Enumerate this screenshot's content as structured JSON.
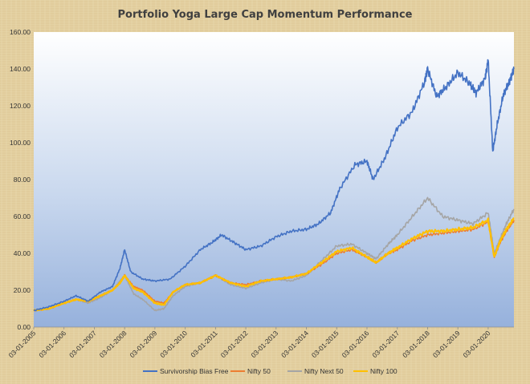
{
  "chart_data": {
    "type": "line",
    "title": "Portfolio Yoga Large Cap Momentum Performance",
    "xlabel": "",
    "ylabel": "",
    "ylim": [
      0,
      160
    ],
    "yticks": [
      "0.00",
      "20.00",
      "40.00",
      "60.00",
      "80.00",
      "100.00",
      "120.00",
      "140.00",
      "160.00"
    ],
    "xlim": [
      2005,
      2020.85
    ],
    "xticks": [
      "03-01-2005",
      "03-01-2006",
      "03-01-2007",
      "03-01-2008",
      "03-01-2009",
      "03-01-2010",
      "03-01-2011",
      "03-01-2012",
      "03-01-2013",
      "03-01-2014",
      "03-01-2015",
      "03-01-2016",
      "03-01-2017",
      "03-01-2018",
      "03-01-2019",
      "03-01-2020"
    ],
    "grid": false,
    "legend_position": "bottom",
    "series": [
      {
        "name": "Survivorship Bias Free",
        "color": "#4472c4",
        "x": [
          2005,
          2005.5,
          2006,
          2006.4,
          2006.8,
          2007.2,
          2007.6,
          2007.85,
          2008.0,
          2008.2,
          2008.6,
          2009.0,
          2009.5,
          2010.0,
          2010.5,
          2010.9,
          2011.2,
          2011.6,
          2012.0,
          2012.5,
          2013.0,
          2013.5,
          2014.0,
          2014.4,
          2014.8,
          2015.1,
          2015.6,
          2016.0,
          2016.2,
          2016.6,
          2017.0,
          2017.5,
          2017.9,
          2018.0,
          2018.3,
          2018.6,
          2019.0,
          2019.4,
          2019.6,
          2019.9,
          2020.0,
          2020.15,
          2020.3,
          2020.5,
          2020.7,
          2020.85
        ],
        "y": [
          9,
          11,
          14,
          17,
          14,
          19,
          22,
          32,
          42,
          30,
          26,
          25,
          26,
          33,
          42,
          46,
          50,
          46,
          42,
          44,
          49,
          52,
          53,
          56,
          62,
          75,
          88,
          90,
          80,
          92,
          108,
          117,
          133,
          140,
          125,
          130,
          138,
          132,
          127,
          135,
          145,
          95,
          110,
          126,
          133,
          140
        ]
      },
      {
        "name": "Nifty 50",
        "color": "#ed7d31",
        "x": [
          2005,
          2005.5,
          2006,
          2006.4,
          2006.8,
          2007.2,
          2007.6,
          2007.85,
          2008.0,
          2008.3,
          2008.6,
          2009.0,
          2009.3,
          2009.6,
          2010.0,
          2010.5,
          2011.0,
          2011.5,
          2012.0,
          2012.5,
          2013.0,
          2013.5,
          2014.0,
          2014.5,
          2015.0,
          2015.5,
          2016.0,
          2016.3,
          2016.7,
          2017.0,
          2017.5,
          2018.0,
          2018.5,
          2019.0,
          2019.5,
          2020.0,
          2020.2,
          2020.4,
          2020.6,
          2020.85
        ],
        "y": [
          9,
          10,
          13,
          15,
          14,
          17,
          20,
          24,
          28,
          22,
          20,
          14,
          13,
          19,
          23,
          24,
          28,
          24,
          23,
          25,
          26,
          27,
          29,
          34,
          40,
          42,
          38,
          35,
          40,
          42,
          47,
          50,
          51,
          52,
          53,
          57,
          38,
          46,
          52,
          58
        ]
      },
      {
        "name": "Nifty Next 50",
        "color": "#a5a5a5",
        "x": [
          2005,
          2005.5,
          2006,
          2006.4,
          2006.8,
          2007.2,
          2007.6,
          2007.85,
          2008.0,
          2008.3,
          2008.6,
          2009.0,
          2009.3,
          2009.6,
          2010.0,
          2010.5,
          2011.0,
          2011.5,
          2012.0,
          2012.5,
          2013.0,
          2013.5,
          2014.0,
          2014.5,
          2015.0,
          2015.5,
          2016.0,
          2016.3,
          2016.7,
          2017.0,
          2017.5,
          2018.0,
          2018.5,
          2019.0,
          2019.5,
          2020.0,
          2020.2,
          2020.4,
          2020.6,
          2020.85
        ],
        "y": [
          9,
          10,
          13,
          15,
          13,
          16,
          20,
          25,
          28,
          18,
          15,
          9,
          10,
          17,
          22,
          24,
          28,
          23,
          21,
          24,
          26,
          25,
          28,
          36,
          44,
          45,
          40,
          37,
          45,
          50,
          60,
          70,
          60,
          58,
          56,
          62,
          40,
          48,
          56,
          64
        ]
      },
      {
        "name": "Nifty 100",
        "color": "#ffc000",
        "x": [
          2005,
          2005.5,
          2006,
          2006.4,
          2006.8,
          2007.2,
          2007.6,
          2007.85,
          2008.0,
          2008.3,
          2008.6,
          2009.0,
          2009.3,
          2009.6,
          2010.0,
          2010.5,
          2011.0,
          2011.5,
          2012.0,
          2012.5,
          2013.0,
          2013.5,
          2014.0,
          2014.5,
          2015.0,
          2015.5,
          2016.0,
          2016.3,
          2016.7,
          2017.0,
          2017.5,
          2018.0,
          2018.5,
          2019.0,
          2019.5,
          2020.0,
          2020.2,
          2020.4,
          2020.6,
          2020.85
        ],
        "y": [
          9,
          10,
          13,
          15,
          14,
          17,
          20,
          24,
          28,
          21,
          19,
          13,
          12,
          19,
          23,
          24,
          28,
          24,
          22,
          25,
          26,
          27,
          29,
          35,
          41,
          43,
          38,
          35,
          40,
          43,
          48,
          52,
          52,
          53,
          54,
          58,
          38,
          47,
          53,
          59
        ]
      }
    ]
  }
}
